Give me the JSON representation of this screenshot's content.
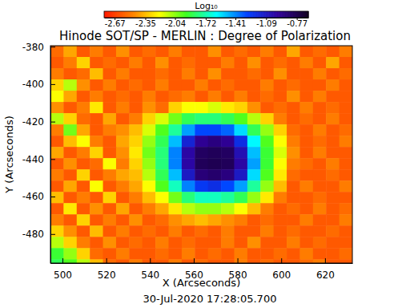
{
  "chart_data": {
    "type": "heatmap",
    "title": "Hinode SOT/SP - MERLIN : Degree of Polarization",
    "x_label": "X (Arcseconds)",
    "y_label": "Y (Arcseconds)",
    "annotation": "30-Jul-2020 17:28:05.700",
    "xlim": [
      494.5,
      632.5
    ],
    "ylim": [
      -495.5,
      -379.5
    ],
    "xticks": [
      500,
      520,
      540,
      560,
      580,
      600,
      620
    ],
    "yticks": [
      -480,
      -460,
      -440,
      -420,
      -400,
      -380
    ],
    "x": [
      497.5,
      503.5,
      509.5,
      515.5,
      521.5,
      527.5,
      533.5,
      539.5,
      545.5,
      551.5,
      557.5,
      563.5,
      569.5,
      575.5,
      581.5,
      587.5,
      593.5,
      599.5,
      605.5,
      611.5,
      617.5,
      623.5,
      629.5
    ],
    "y": [
      -382.5,
      -388.5,
      -394.5,
      -400.5,
      -406.5,
      -412.5,
      -418.5,
      -424.5,
      -430.5,
      -436.5,
      -442.5,
      -448.5,
      -454.5,
      -460.5,
      -466.5,
      -472.5,
      -478.5,
      -484.5,
      -490.5,
      -496.5
    ],
    "z": [
      [
        -2.55,
        -2.4,
        -2.6,
        -2.5,
        -2.6,
        -2.45,
        -2.6,
        -2.55,
        -2.6,
        -2.5,
        -2.6,
        -2.6,
        -2.45,
        -2.6,
        -2.55,
        -2.6,
        -2.5,
        -2.6,
        -2.4,
        -2.6,
        -2.55,
        -2.6,
        -2.5
      ],
      [
        -2.6,
        -2.5,
        -2.3,
        -2.6,
        -2.55,
        -2.6,
        -2.5,
        -2.6,
        -2.45,
        -2.6,
        -2.55,
        -2.6,
        -2.6,
        -2.5,
        -2.6,
        -2.45,
        -2.6,
        -2.55,
        -2.6,
        -2.5,
        -2.6,
        -2.4,
        -2.6
      ],
      [
        -2.5,
        -2.6,
        -2.55,
        -2.35,
        -2.6,
        -2.5,
        -2.6,
        -2.6,
        -2.55,
        -2.6,
        -2.5,
        -2.6,
        -2.45,
        -2.6,
        -2.6,
        -2.55,
        -2.6,
        -2.45,
        -2.6,
        -2.6,
        -2.5,
        -2.6,
        -2.55
      ],
      [
        -2.3,
        -2.1,
        -2.45,
        -2.6,
        -2.5,
        -2.6,
        -2.55,
        -2.6,
        -2.5,
        -2.6,
        -2.6,
        -2.5,
        -2.6,
        -2.55,
        -2.6,
        -2.6,
        -2.5,
        -2.6,
        -2.55,
        -2.6,
        -2.6,
        -2.5,
        -2.6
      ],
      [
        -2.2,
        -2.4,
        -2.6,
        -2.5,
        -2.6,
        -2.55,
        -2.6,
        -2.5,
        -2.6,
        -2.55,
        -2.5,
        -2.6,
        -2.5,
        -2.6,
        -2.5,
        -2.6,
        -2.55,
        -2.6,
        -2.45,
        -2.6,
        -2.5,
        -2.6,
        -2.6
      ],
      [
        -2.45,
        -2.6,
        -2.5,
        -2.25,
        -2.6,
        -2.5,
        -2.6,
        -2.45,
        -2.55,
        -2.3,
        -2.2,
        -2.2,
        -2.15,
        -2.25,
        -2.3,
        -2.45,
        -2.6,
        -2.55,
        -2.6,
        -2.5,
        -2.6,
        -2.55,
        -2.6
      ],
      [
        -2.1,
        -2.3,
        -2.55,
        -2.6,
        -2.4,
        -2.6,
        -2.5,
        -2.3,
        -2.15,
        -2.0,
        -1.85,
        -1.8,
        -1.8,
        -1.85,
        -1.95,
        -2.1,
        -2.3,
        -2.5,
        -2.6,
        -2.55,
        -2.6,
        -2.5,
        -2.6
      ],
      [
        -2.5,
        -2.0,
        -2.4,
        -2.6,
        -2.5,
        -2.45,
        -2.35,
        -2.15,
        -1.95,
        -1.75,
        -1.45,
        -1.3,
        -1.3,
        -1.35,
        -1.55,
        -1.85,
        -2.05,
        -2.3,
        -2.55,
        -2.6,
        -2.5,
        -2.6,
        -2.55
      ],
      [
        -2.6,
        -2.35,
        -2.2,
        -2.5,
        -2.6,
        -2.4,
        -2.3,
        -2.05,
        -1.85,
        -1.5,
        -1.15,
        -0.95,
        -0.9,
        -0.95,
        -1.2,
        -1.6,
        -1.95,
        -2.2,
        -2.5,
        -2.6,
        -2.55,
        -2.6,
        -2.5
      ],
      [
        -2.4,
        -2.6,
        -2.5,
        -2.3,
        -2.6,
        -2.45,
        -2.25,
        -2.0,
        -1.8,
        -1.4,
        -1.0,
        -0.82,
        -0.8,
        -0.82,
        -1.05,
        -1.5,
        -1.9,
        -2.15,
        -2.45,
        -2.6,
        -2.5,
        -2.6,
        -2.6
      ],
      [
        -2.6,
        -2.45,
        -2.6,
        -2.55,
        -2.2,
        -2.5,
        -2.3,
        -2.05,
        -1.8,
        -1.4,
        -1.0,
        -0.8,
        -0.78,
        -0.8,
        -1.0,
        -1.45,
        -1.9,
        -2.2,
        -2.5,
        -2.55,
        -2.6,
        -2.5,
        -2.6
      ],
      [
        -2.5,
        -2.6,
        -2.3,
        -2.6,
        -2.5,
        -2.4,
        -2.35,
        -2.1,
        -1.85,
        -1.5,
        -1.1,
        -0.88,
        -0.85,
        -0.9,
        -1.1,
        -1.55,
        -1.95,
        -2.25,
        -2.55,
        -2.6,
        -2.6,
        -2.55,
        -2.6
      ],
      [
        -2.6,
        -2.4,
        -2.6,
        -2.2,
        -2.6,
        -2.5,
        -2.4,
        -2.2,
        -1.95,
        -1.7,
        -1.4,
        -1.25,
        -1.2,
        -1.3,
        -1.45,
        -1.75,
        -2.05,
        -2.35,
        -2.6,
        -2.5,
        -2.6,
        -2.6,
        -2.5
      ],
      [
        -2.35,
        -2.6,
        -2.5,
        -2.6,
        -2.3,
        -2.6,
        -2.5,
        -2.35,
        -2.2,
        -2.0,
        -1.8,
        -1.7,
        -1.7,
        -1.75,
        -1.85,
        -2.05,
        -2.25,
        -2.5,
        -2.6,
        -2.6,
        -2.55,
        -2.6,
        -2.6
      ],
      [
        -2.6,
        -2.25,
        -2.6,
        -2.45,
        -2.6,
        -2.4,
        -2.6,
        -2.5,
        -2.4,
        -2.25,
        -2.1,
        -2.05,
        -2.05,
        -2.1,
        -2.2,
        -2.35,
        -2.5,
        -2.6,
        -2.55,
        -2.6,
        -2.5,
        -2.6,
        -2.55
      ],
      [
        -2.5,
        -2.6,
        -2.3,
        -2.6,
        -2.5,
        -2.6,
        -2.45,
        -2.6,
        -2.55,
        -2.45,
        -2.4,
        -2.35,
        -2.4,
        -2.45,
        -2.5,
        -2.6,
        -2.55,
        -2.6,
        -2.6,
        -2.5,
        -2.6,
        -2.6,
        -2.5
      ],
      [
        -2.3,
        -2.45,
        -2.6,
        -2.35,
        -2.6,
        -2.5,
        -2.6,
        -2.55,
        -2.6,
        -2.5,
        -2.6,
        -2.55,
        -2.6,
        -2.5,
        -2.6,
        -2.6,
        -2.5,
        -2.6,
        -2.55,
        -2.6,
        -2.6,
        -2.55,
        -2.6
      ],
      [
        -2.1,
        -2.3,
        -2.5,
        -2.6,
        -2.45,
        -2.6,
        -2.55,
        -2.6,
        -2.5,
        -2.6,
        -2.55,
        -2.6,
        -2.6,
        -2.5,
        -2.6,
        -2.45,
        -2.6,
        -2.6,
        -2.5,
        -2.6,
        -2.55,
        -2.6,
        -2.6
      ],
      [
        -1.9,
        -2.05,
        -2.3,
        -2.55,
        -2.6,
        -2.5,
        -2.6,
        -2.6,
        -2.55,
        -2.6,
        -2.5,
        -2.6,
        -2.55,
        -2.6,
        -2.5,
        -2.6,
        -2.6,
        -2.55,
        -2.6,
        -2.5,
        -2.6,
        -2.6,
        -2.55
      ],
      [
        -1.85,
        -1.95,
        -2.1,
        -2.35,
        -2.55,
        -2.6,
        -2.5,
        -2.6,
        -2.6,
        -2.5,
        -2.6,
        -2.55,
        -2.6,
        -2.6,
        -2.5,
        -2.6,
        -2.55,
        -2.6,
        -2.6,
        -2.55,
        -2.5,
        -2.6,
        -2.6
      ]
    ],
    "colorbar": {
      "title": "Log₁₀",
      "range": [
        -2.78,
        -0.65
      ],
      "ticks": [
        -2.67,
        -2.35,
        -2.04,
        -1.72,
        -1.41,
        -1.09,
        -0.77
      ]
    }
  }
}
